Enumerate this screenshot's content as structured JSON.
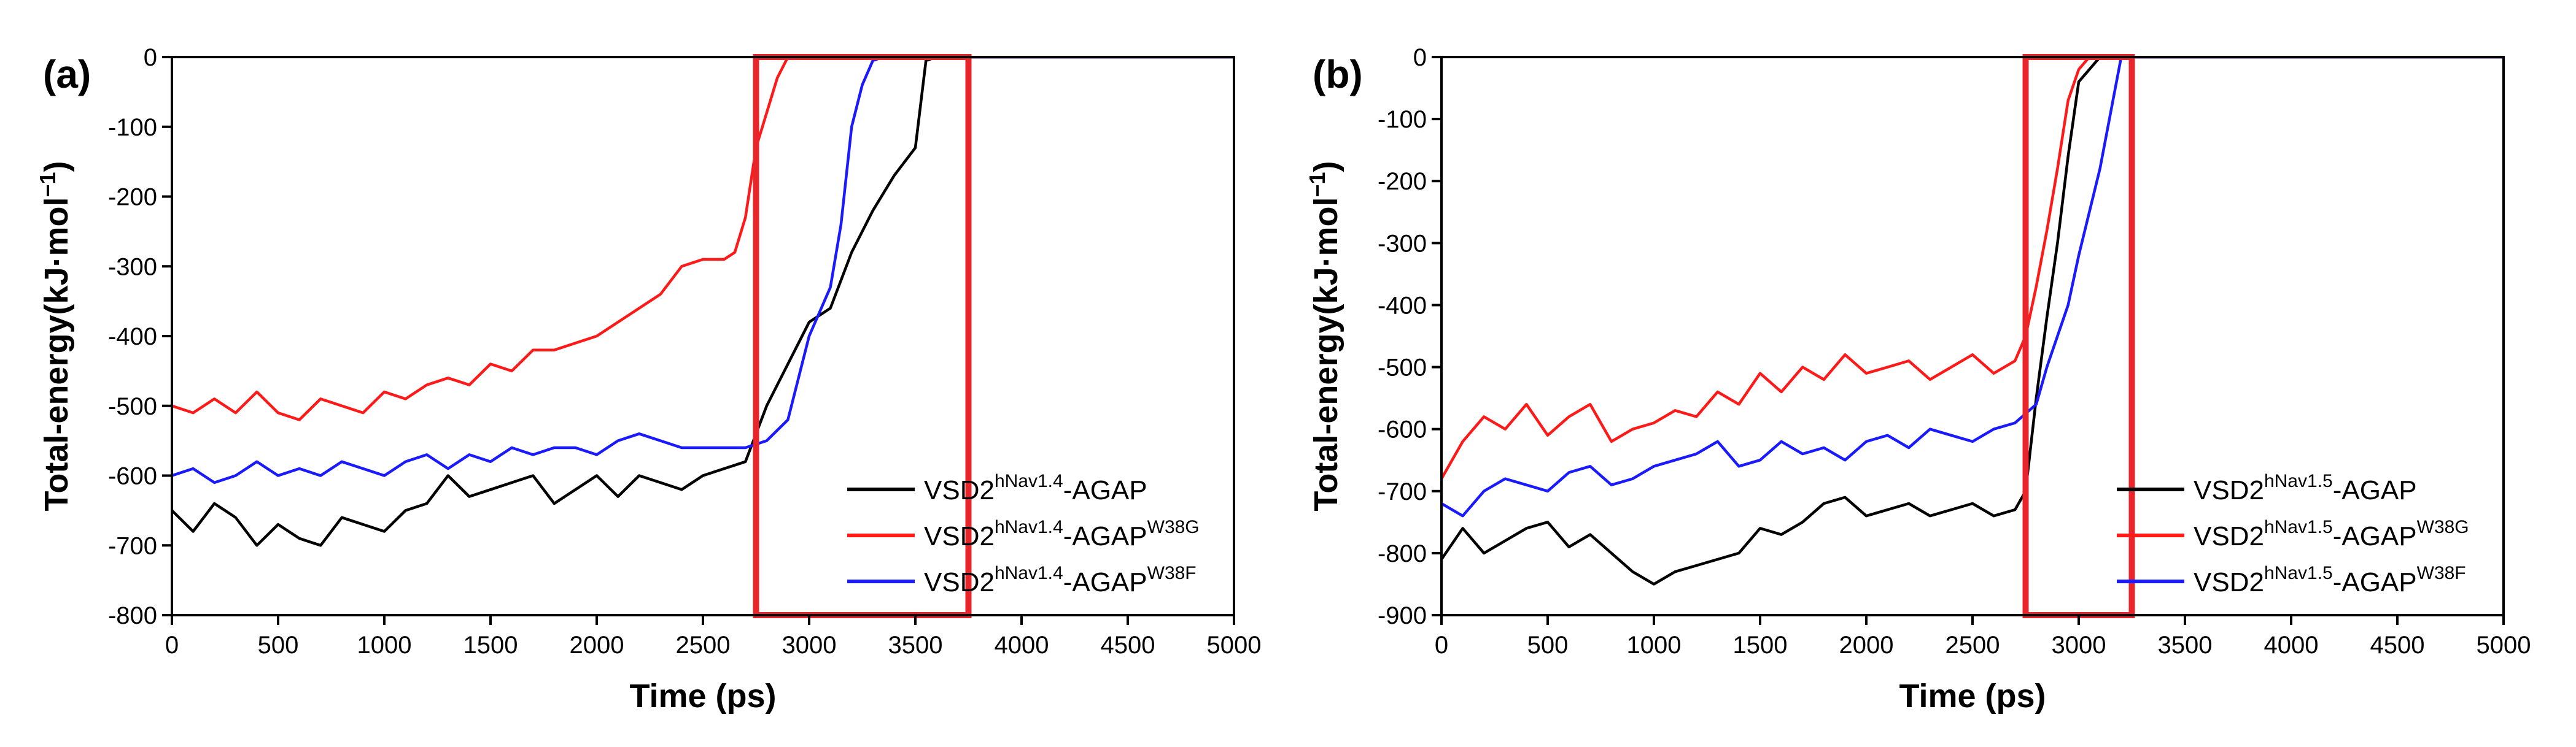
{
  "chart_data": [
    {
      "type": "line",
      "panel_label": "(a)",
      "xlabel": "Time (ps)",
      "ylabel": "Total-energy(kJ·mol−1)",
      "ylabel_parts": {
        "main": "Total-energy(kJ·mol",
        "sup": "−1",
        "close": ")"
      },
      "xlim": [
        0,
        5000
      ],
      "ylim": [
        -800,
        0
      ],
      "xticks": [
        0,
        500,
        1000,
        1500,
        2000,
        2500,
        3000,
        3500,
        4000,
        4500,
        5000
      ],
      "yticks": [
        0,
        -100,
        -200,
        -300,
        -400,
        -500,
        -600,
        -700,
        -800
      ],
      "grid": false,
      "legend_position": "bottom-right",
      "highlight_box": {
        "x_range": [
          2750,
          3750
        ],
        "y_range": [
          -800,
          0
        ],
        "color": "#e8252b"
      },
      "series": [
        {
          "name": "VSD2hNav1.4-AGAP",
          "label_base": "VSD2",
          "label_sup": "hNav1.4",
          "label_tail": "-AGAP",
          "label_tail_sup": "",
          "color": "#000000",
          "x": [
            0,
            100,
            200,
            300,
            400,
            500,
            600,
            700,
            800,
            900,
            1000,
            1100,
            1200,
            1300,
            1400,
            1500,
            1600,
            1700,
            1800,
            1900,
            2000,
            2100,
            2200,
            2300,
            2400,
            2500,
            2600,
            2700,
            2800,
            2900,
            3000,
            3100,
            3200,
            3300,
            3400,
            3500,
            3550,
            3600,
            4000,
            4500,
            5000
          ],
          "y": [
            -650,
            -680,
            -640,
            -660,
            -700,
            -670,
            -690,
            -700,
            -660,
            -670,
            -680,
            -650,
            -640,
            -600,
            -630,
            -620,
            -610,
            -600,
            -640,
            -620,
            -600,
            -630,
            -600,
            -610,
            -620,
            -600,
            -590,
            -580,
            -500,
            -440,
            -380,
            -360,
            -280,
            -220,
            -170,
            -130,
            -5,
            0,
            0,
            0,
            0
          ]
        },
        {
          "name": "VSD2hNav1.4-AGAPW38G",
          "label_base": "VSD2",
          "label_sup": "hNav1.4",
          "label_tail": "-AGAP",
          "label_tail_sup": "W38G",
          "color": "#ff1a1a",
          "x": [
            0,
            100,
            200,
            300,
            400,
            500,
            600,
            700,
            800,
            900,
            1000,
            1100,
            1200,
            1300,
            1400,
            1500,
            1600,
            1700,
            1800,
            1900,
            2000,
            2100,
            2200,
            2300,
            2400,
            2500,
            2600,
            2650,
            2700,
            2750,
            2800,
            2850,
            2900,
            3000,
            3500,
            4000,
            4500,
            5000
          ],
          "y": [
            -500,
            -510,
            -490,
            -510,
            -480,
            -510,
            -520,
            -490,
            -500,
            -510,
            -480,
            -490,
            -470,
            -460,
            -470,
            -440,
            -450,
            -420,
            -420,
            -410,
            -400,
            -380,
            -360,
            -340,
            -300,
            -290,
            -290,
            -280,
            -230,
            -130,
            -80,
            -30,
            0,
            0,
            0,
            0,
            0,
            0
          ]
        },
        {
          "name": "VSD2hNav1.4-AGAPW38F",
          "label_base": "VSD2",
          "label_sup": "hNav1.4",
          "label_tail": "-AGAP",
          "label_tail_sup": "W38F",
          "color": "#1a1aff",
          "x": [
            0,
            100,
            200,
            300,
            400,
            500,
            600,
            700,
            800,
            900,
            1000,
            1100,
            1200,
            1300,
            1400,
            1500,
            1600,
            1700,
            1800,
            1900,
            2000,
            2100,
            2200,
            2300,
            2400,
            2500,
            2600,
            2700,
            2800,
            2900,
            3000,
            3100,
            3150,
            3200,
            3250,
            3300,
            3350,
            3400,
            4000,
            4500,
            5000
          ],
          "y": [
            -600,
            -590,
            -610,
            -600,
            -580,
            -600,
            -590,
            -600,
            -580,
            -590,
            -600,
            -580,
            -570,
            -590,
            -570,
            -580,
            -560,
            -570,
            -560,
            -560,
            -570,
            -550,
            -540,
            -550,
            -560,
            -560,
            -560,
            -560,
            -550,
            -520,
            -400,
            -330,
            -240,
            -100,
            -40,
            -5,
            0,
            0,
            0,
            0,
            0
          ]
        }
      ]
    },
    {
      "type": "line",
      "panel_label": "(b)",
      "xlabel": "Time (ps)",
      "ylabel": "Total-energy(kJ·mol−1)",
      "ylabel_parts": {
        "main": "Total-energy(kJ·mol",
        "sup": "−1",
        "close": ")"
      },
      "xlim": [
        0,
        5000
      ],
      "ylim": [
        -900,
        0
      ],
      "xticks": [
        0,
        500,
        1000,
        1500,
        2000,
        2500,
        3000,
        3500,
        4000,
        4500,
        5000
      ],
      "yticks": [
        0,
        -100,
        -200,
        -300,
        -400,
        -500,
        -600,
        -700,
        -800,
        -900
      ],
      "grid": false,
      "legend_position": "bottom-right",
      "highlight_box": {
        "x_range": [
          2750,
          3250
        ],
        "y_range": [
          -900,
          0
        ],
        "color": "#e8252b"
      },
      "series": [
        {
          "name": "VSD2hNav1.5-AGAP",
          "label_base": "VSD2",
          "label_sup": "hNav1.5",
          "label_tail": "-AGAP",
          "label_tail_sup": "",
          "color": "#000000",
          "x": [
            0,
            100,
            200,
            300,
            400,
            500,
            600,
            700,
            800,
            900,
            1000,
            1100,
            1200,
            1300,
            1400,
            1500,
            1600,
            1700,
            1800,
            1900,
            2000,
            2100,
            2200,
            2300,
            2400,
            2500,
            2600,
            2700,
            2750,
            2800,
            2850,
            2900,
            2950,
            3000,
            3100,
            3500,
            4000,
            4500,
            5000
          ],
          "y": [
            -810,
            -760,
            -800,
            -780,
            -760,
            -750,
            -790,
            -770,
            -800,
            -830,
            -850,
            -830,
            -820,
            -810,
            -800,
            -760,
            -770,
            -750,
            -720,
            -710,
            -740,
            -730,
            -720,
            -740,
            -730,
            -720,
            -740,
            -730,
            -700,
            -550,
            -420,
            -300,
            -160,
            -40,
            0,
            0,
            0,
            0,
            0
          ]
        },
        {
          "name": "VSD2hNav1.5-AGAPW38G",
          "label_base": "VSD2",
          "label_sup": "hNav1.5",
          "label_tail": "-AGAP",
          "label_tail_sup": "W38G",
          "color": "#ff1a1a",
          "x": [
            0,
            100,
            200,
            300,
            400,
            500,
            600,
            700,
            800,
            900,
            1000,
            1100,
            1200,
            1300,
            1400,
            1500,
            1600,
            1700,
            1800,
            1900,
            2000,
            2100,
            2200,
            2300,
            2400,
            2500,
            2600,
            2700,
            2750,
            2800,
            2850,
            2900,
            2950,
            3000,
            3050,
            3500,
            4000,
            4500,
            5000
          ],
          "y": [
            -680,
            -620,
            -580,
            -600,
            -560,
            -610,
            -580,
            -560,
            -620,
            -600,
            -590,
            -570,
            -580,
            -540,
            -560,
            -510,
            -540,
            -500,
            -520,
            -480,
            -510,
            -500,
            -490,
            -520,
            -500,
            -480,
            -510,
            -490,
            -450,
            -370,
            -280,
            -180,
            -70,
            -20,
            0,
            0,
            0,
            0,
            0
          ]
        },
        {
          "name": "VSD2hNav1.5-AGAPW38F",
          "label_base": "VSD2",
          "label_sup": "hNav1.5",
          "label_tail": "-AGAP",
          "label_tail_sup": "W38F",
          "color": "#1a1aff",
          "x": [
            0,
            100,
            200,
            300,
            400,
            500,
            600,
            700,
            800,
            900,
            1000,
            1100,
            1200,
            1300,
            1400,
            1500,
            1600,
            1700,
            1800,
            1900,
            2000,
            2100,
            2200,
            2300,
            2400,
            2500,
            2600,
            2700,
            2800,
            2850,
            2900,
            2950,
            3000,
            3050,
            3100,
            3150,
            3200,
            3500,
            4000,
            4500,
            5000
          ],
          "y": [
            -720,
            -740,
            -700,
            -680,
            -690,
            -700,
            -670,
            -660,
            -690,
            -680,
            -660,
            -650,
            -640,
            -620,
            -660,
            -650,
            -620,
            -640,
            -630,
            -650,
            -620,
            -610,
            -630,
            -600,
            -610,
            -620,
            -600,
            -590,
            -560,
            -500,
            -450,
            -400,
            -320,
            -250,
            -180,
            -90,
            0,
            0,
            0,
            0,
            0
          ]
        }
      ]
    }
  ]
}
